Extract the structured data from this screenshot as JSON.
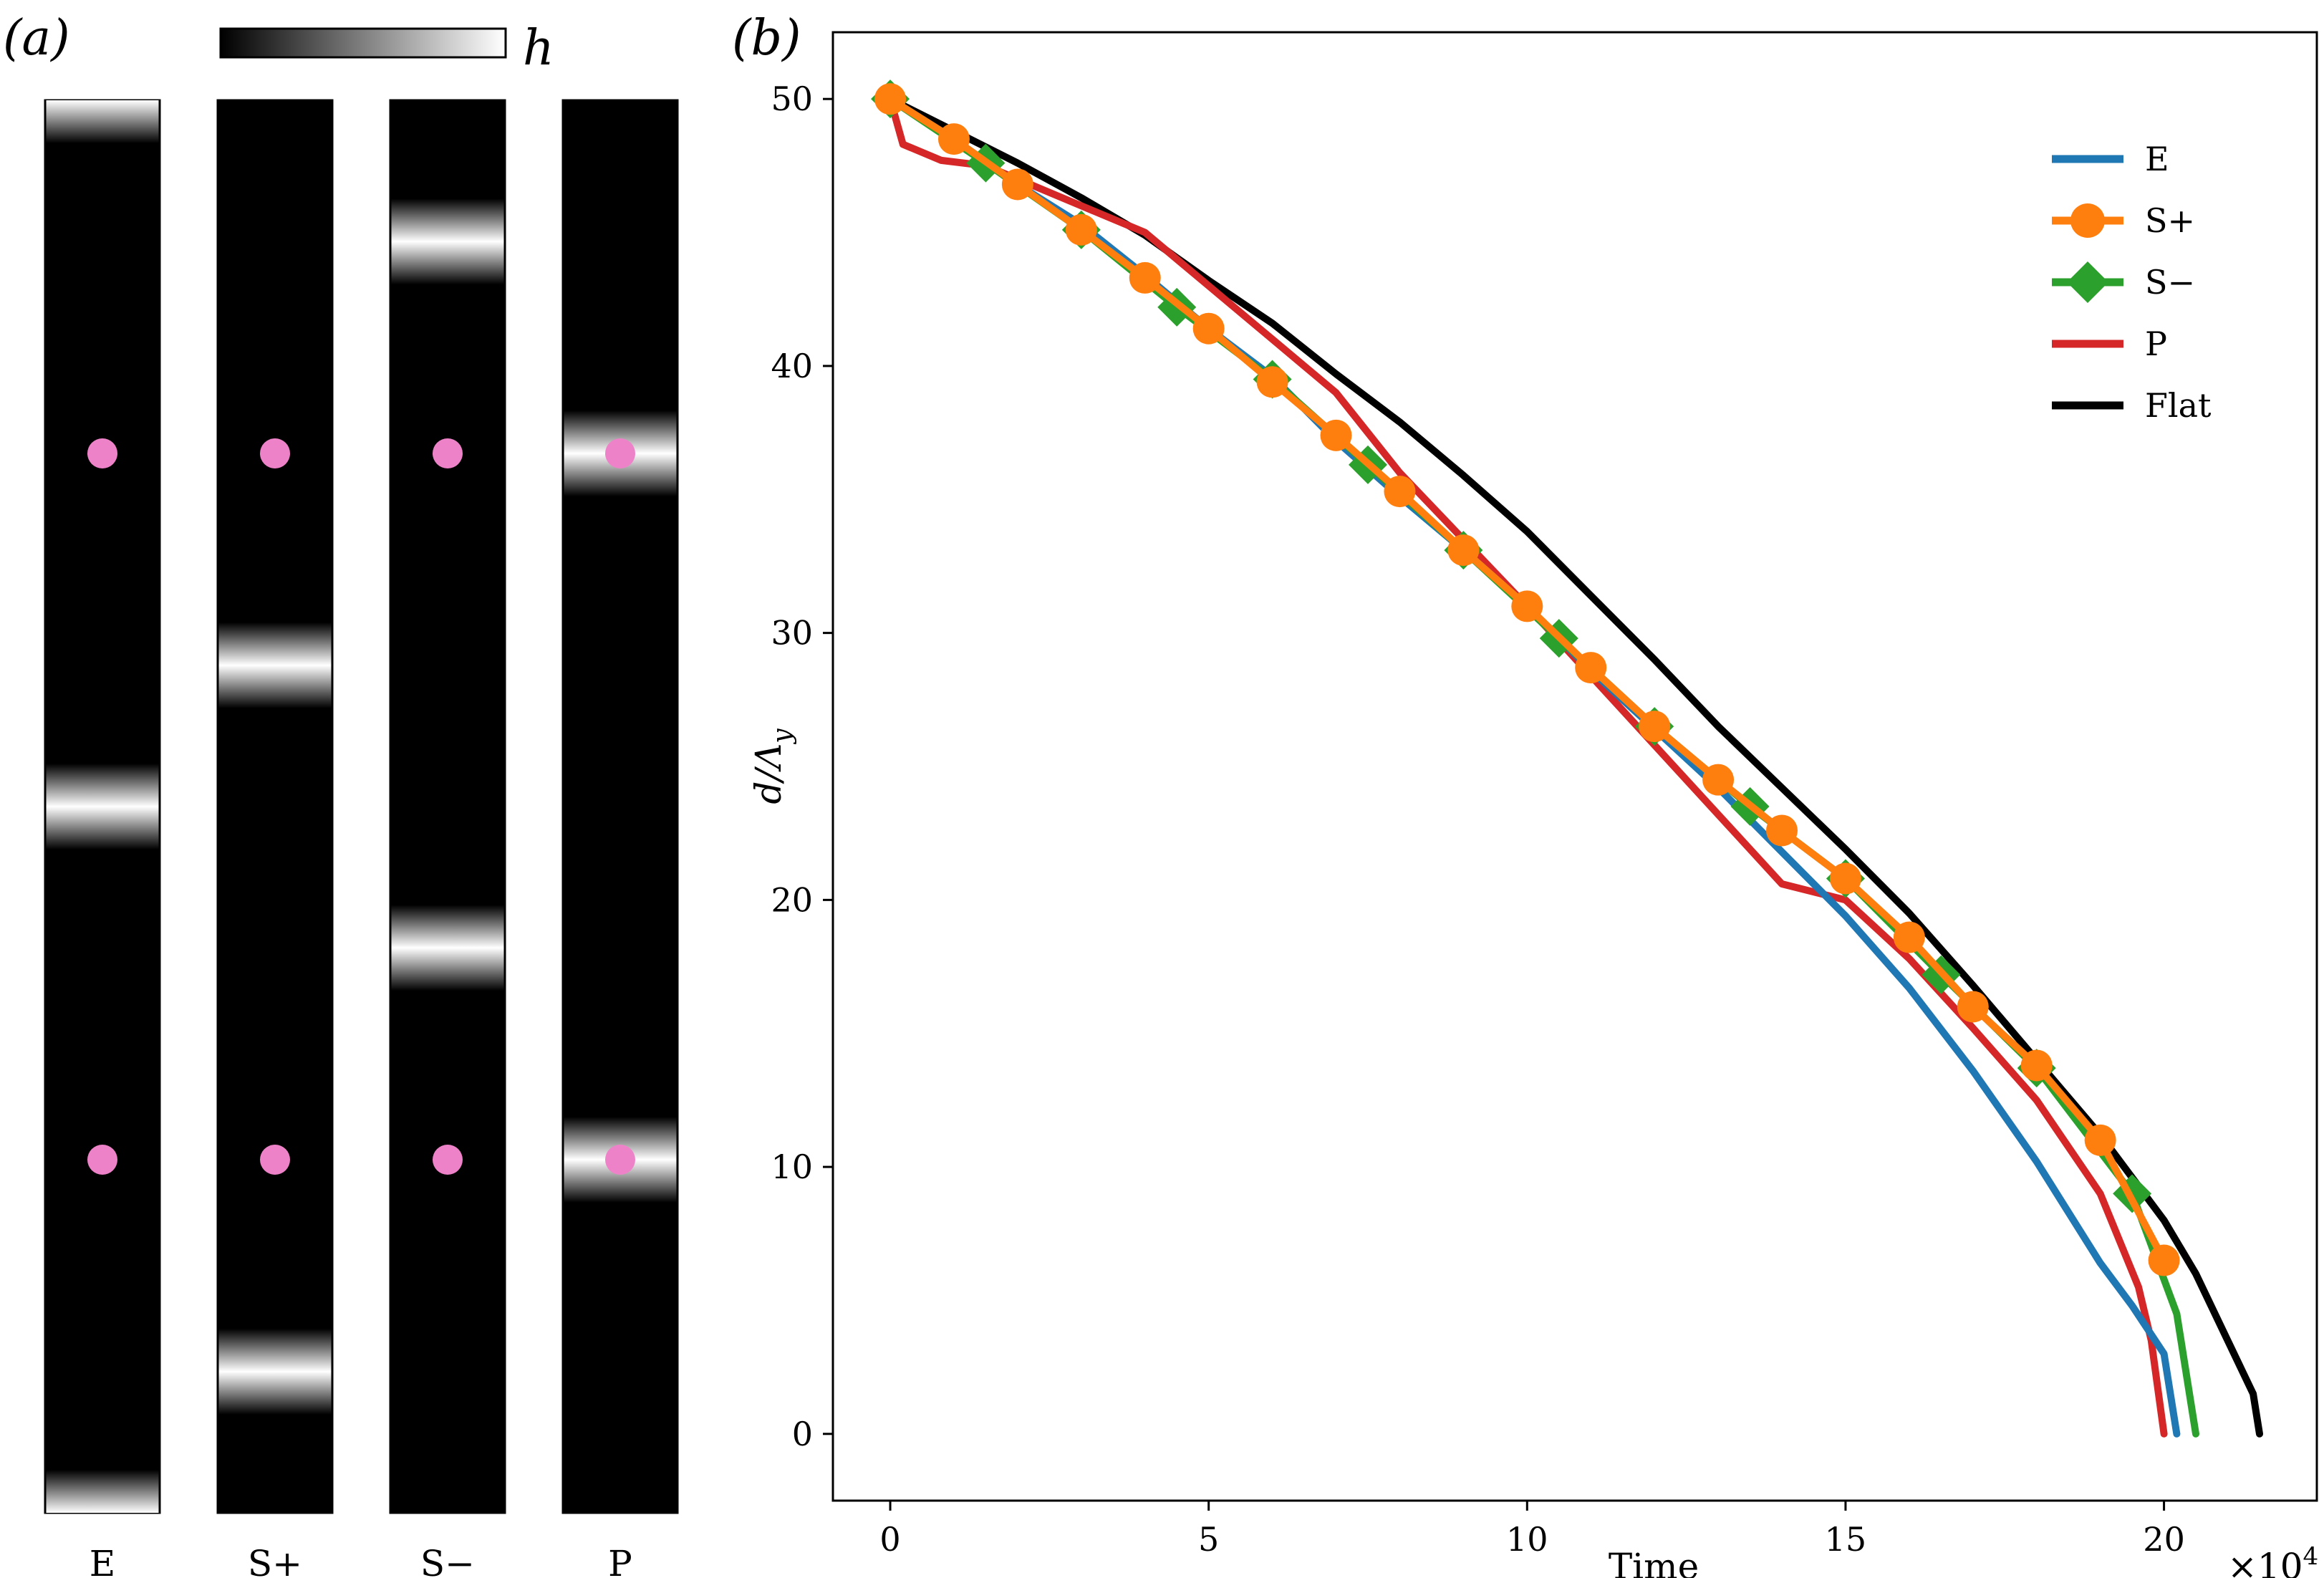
{
  "panel_a": {
    "label": "(a)",
    "colorbar_label": "h",
    "colorbar_colors": [
      "#000000",
      "#ffffff"
    ],
    "marker_color": "#ee82c8",
    "strips": [
      {
        "name": "E",
        "label": "E",
        "stripes": [
          0.0,
          0.5,
          1.0
        ],
        "markers": [
          0.25,
          0.75
        ]
      },
      {
        "name": "S+",
        "label": "S+",
        "stripes": [
          0.4,
          0.9
        ],
        "markers": [
          0.25,
          0.75
        ]
      },
      {
        "name": "S-",
        "label": "S−",
        "stripes": [
          0.1,
          0.6
        ],
        "markers": [
          0.25,
          0.75
        ]
      },
      {
        "name": "P",
        "label": "P",
        "stripes": [
          0.25,
          0.75
        ],
        "markers": [
          0.25,
          0.75
        ]
      }
    ]
  },
  "chart_data": {
    "type": "line",
    "panel_label": "(b)",
    "xlabel": "Time",
    "ylabel": "d/Λ_y",
    "ylabel_main": "d/Λ",
    "ylabel_sub": "y",
    "x_multiplier": "×10",
    "x_multiplier_exp": "4",
    "xlim": [
      -0.9,
      22.4
    ],
    "ylim": [
      -2.5,
      52.5
    ],
    "xticks": [
      0,
      5,
      10,
      15,
      20
    ],
    "yticks": [
      0,
      10,
      20,
      30,
      40,
      50
    ],
    "xtick_labels": [
      "0",
      "5",
      "10",
      "15",
      "20"
    ],
    "ytick_labels": [
      "0",
      "10",
      "20",
      "30",
      "40",
      "50"
    ],
    "legend_position": "top-right",
    "series": [
      {
        "name": "E",
        "label": "E",
        "color": "#1f77b4",
        "marker": "none",
        "x": [
          0,
          1,
          2,
          3,
          4,
          5,
          6,
          7,
          8,
          9,
          10,
          11,
          12,
          13,
          14,
          15,
          16,
          17,
          18,
          19,
          19.5,
          20,
          20.2
        ],
        "y": [
          50,
          48.5,
          46.8,
          45.3,
          43.4,
          41.4,
          39.6,
          37.2,
          35.1,
          33.1,
          31.0,
          28.6,
          26.4,
          24.2,
          21.8,
          19.4,
          16.7,
          13.6,
          10.2,
          6.4,
          4.8,
          3,
          0
        ]
      },
      {
        "name": "S+",
        "label": "S+",
        "color": "#ff7f0e",
        "marker": "circle",
        "x": [
          0,
          1,
          2,
          3,
          4,
          5,
          6,
          7,
          8,
          9,
          10,
          11,
          12,
          13,
          14,
          15,
          16,
          17,
          18,
          19,
          20
        ],
        "y": [
          50,
          48.5,
          46.8,
          45.1,
          43.3,
          41.4,
          39.4,
          37.4,
          35.3,
          33.1,
          31.0,
          28.7,
          26.5,
          24.5,
          22.6,
          20.8,
          18.6,
          16.0,
          13.8,
          11.0,
          6.5
        ],
        "marker_x": [
          0,
          1,
          2,
          3,
          4,
          5,
          6,
          7,
          8,
          9,
          10,
          11,
          12,
          13,
          14,
          15,
          16,
          17,
          18,
          19,
          20
        ],
        "marker_y": [
          50,
          48.5,
          46.8,
          45.1,
          43.3,
          41.4,
          39.4,
          37.4,
          35.3,
          33.1,
          31.0,
          28.7,
          26.5,
          24.5,
          22.6,
          20.8,
          18.6,
          16.0,
          13.8,
          11.0,
          6.5
        ]
      },
      {
        "name": "S-",
        "label": "S−",
        "color": "#2ca02c",
        "marker": "diamond",
        "x": [
          0,
          1.5,
          3,
          4.5,
          6,
          7.5,
          9,
          10.5,
          12,
          13.5,
          15,
          16.5,
          18,
          19.5,
          20.2,
          20.5
        ],
        "y": [
          50,
          47.6,
          45.1,
          42.2,
          39.5,
          36.3,
          33.1,
          29.8,
          26.5,
          23.5,
          20.8,
          17.2,
          13.7,
          9.0,
          4.5,
          0
        ],
        "marker_x": [
          0,
          1.5,
          3,
          4.5,
          6,
          7.5,
          9,
          10.5,
          12,
          13.5,
          15,
          16.5,
          18,
          19.5
        ],
        "marker_y": [
          50,
          47.6,
          45.1,
          42.2,
          39.5,
          36.3,
          33.1,
          29.8,
          26.5,
          23.5,
          20.8,
          17.2,
          13.7,
          9.0
        ]
      },
      {
        "name": "P",
        "label": "P",
        "color": "#d62728",
        "marker": "none",
        "x": [
          0,
          0.2,
          0.8,
          1.5,
          3,
          4,
          5,
          6,
          7,
          8,
          9,
          10,
          11,
          12,
          13,
          14,
          15,
          16,
          17,
          18,
          19,
          19.6,
          19.8,
          20
        ],
        "y": [
          50,
          48.3,
          47.7,
          47.5,
          46,
          45,
          43,
          41,
          39,
          36,
          33.5,
          31,
          28.4,
          25.8,
          23.2,
          20.6,
          20,
          17.8,
          15.2,
          12.5,
          9,
          5.5,
          3.5,
          0
        ]
      },
      {
        "name": "Flat",
        "label": "Flat",
        "color": "#000000",
        "marker": "none",
        "x": [
          0,
          1,
          2,
          3,
          4,
          5,
          6,
          7,
          8,
          9,
          10,
          11,
          12,
          13,
          14,
          15,
          16,
          17,
          18,
          19,
          20,
          20.5,
          21,
          21.2,
          21.4,
          21.5
        ],
        "y": [
          50,
          48.8,
          47.6,
          46.3,
          44.9,
          43.2,
          41.6,
          39.7,
          37.9,
          35.9,
          33.8,
          31.4,
          29.0,
          26.5,
          24.2,
          21.9,
          19.5,
          16.8,
          14.0,
          11.2,
          8.0,
          6.0,
          3.5,
          2.5,
          1.5,
          0
        ]
      }
    ]
  }
}
